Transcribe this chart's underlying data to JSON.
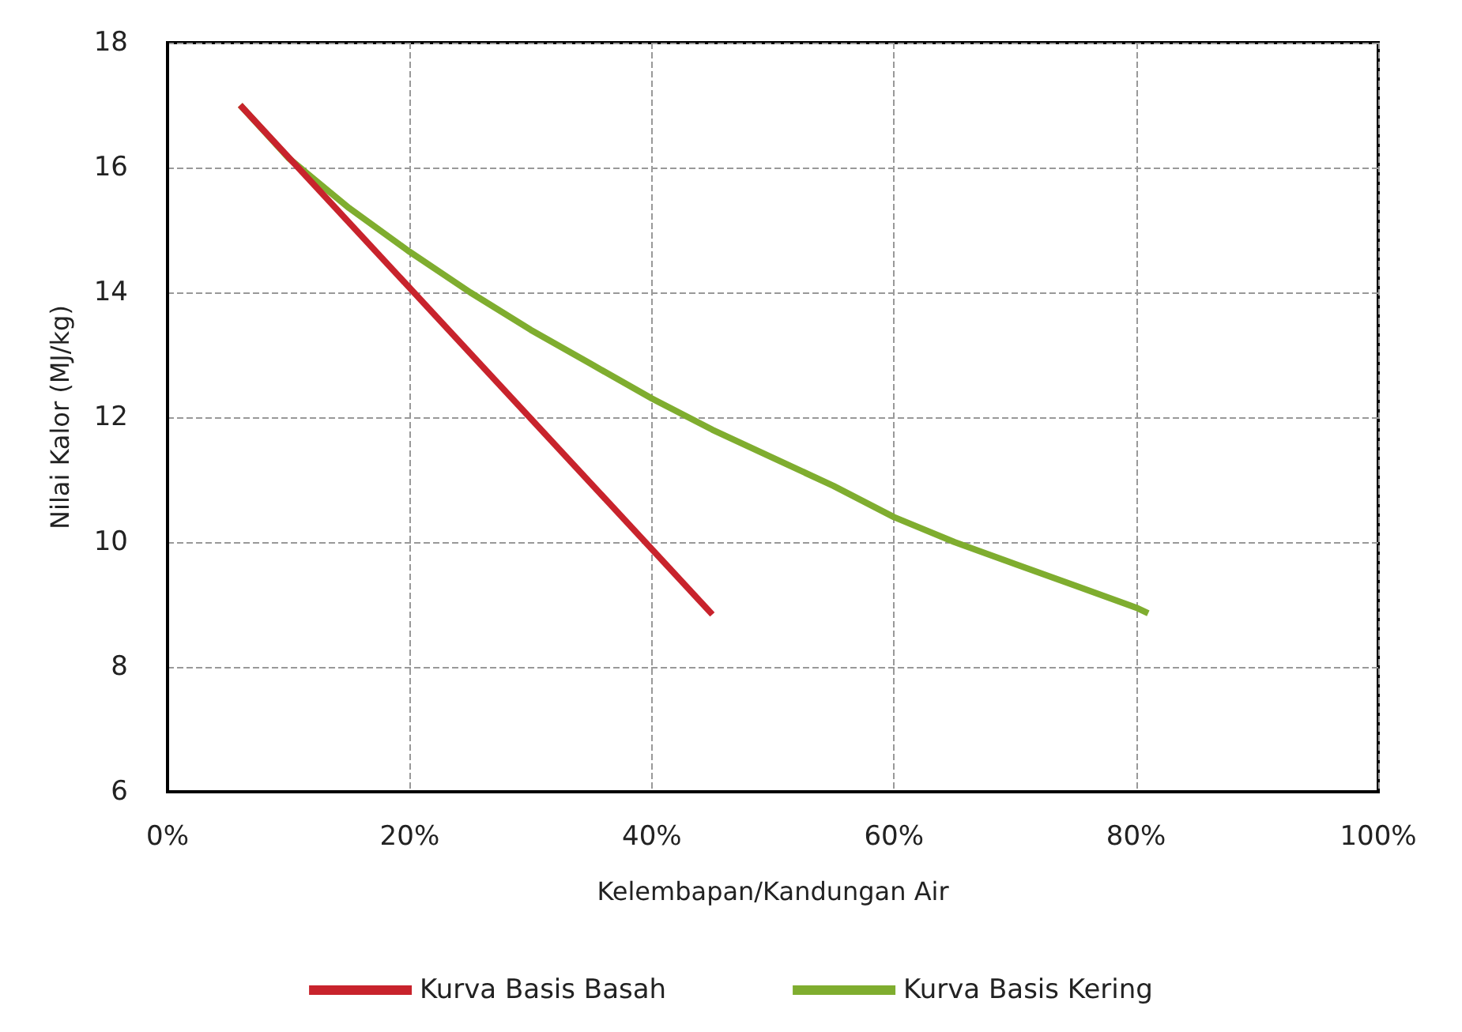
{
  "chart_data": {
    "type": "line",
    "xlabel": "Kelembapan/Kandungan Air",
    "ylabel": "Nilai Kalor (MJ/kg)",
    "xlim": [
      0,
      100
    ],
    "xticks": [
      {
        "value": 0,
        "label": "0%"
      },
      {
        "value": 20,
        "label": "20%"
      },
      {
        "value": 40,
        "label": "40%"
      },
      {
        "value": 60,
        "label": "60%"
      },
      {
        "value": 80,
        "label": "80%"
      },
      {
        "value": 100,
        "label": "100%"
      }
    ],
    "ylim": [
      6,
      18
    ],
    "yticks": [
      6,
      8,
      10,
      12,
      14,
      16,
      18
    ],
    "series": [
      {
        "name": "Kurva Basis Basah",
        "color": "#c8232c",
        "x": [
          6,
          45
        ],
        "values": [
          17,
          8.84
        ]
      },
      {
        "name": "Kurva Basis Kering",
        "color": "#7fad2f",
        "x": [
          6,
          10,
          15,
          20,
          25,
          30,
          35,
          40,
          45,
          50,
          55,
          60,
          65,
          70,
          75,
          80,
          81
        ],
        "values": [
          17,
          16.15,
          15.35,
          14.65,
          14.0,
          13.4,
          12.85,
          12.3,
          11.8,
          11.35,
          10.9,
          10.4,
          10.0,
          9.65,
          9.3,
          8.95,
          8.86
        ]
      }
    ],
    "grid": true,
    "legend": "bottom",
    "marker": "none",
    "line_style": "solid"
  }
}
